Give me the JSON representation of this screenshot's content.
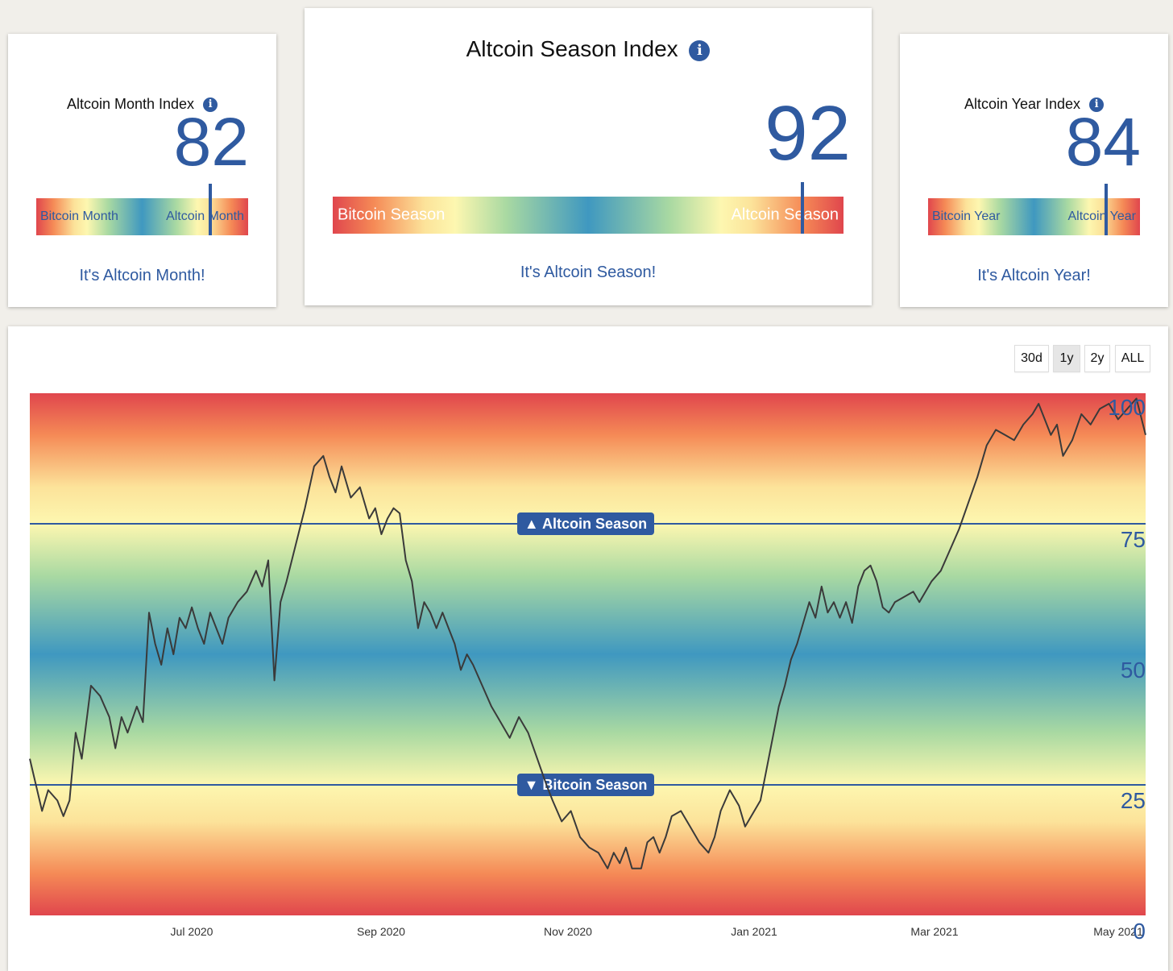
{
  "month_card": {
    "title": "Altcoin Month Index",
    "value": "82",
    "bar_left": "Bitcoin Month",
    "bar_right": "Altcoin Month",
    "marker_percent": 82,
    "message": "It's Altcoin Month!"
  },
  "season_card": {
    "title": "Altcoin Season Index",
    "value": "92",
    "bar_left": "Bitcoin Season",
    "bar_right": "Altcoin Season",
    "marker_percent": 92,
    "message": "It's Altcoin Season!"
  },
  "year_card": {
    "title": "Altcoin Year Index",
    "value": "84",
    "bar_left": "Bitcoin Year",
    "bar_right": "Altcoin Year",
    "marker_percent": 84,
    "message": "It's Altcoin Year!"
  },
  "info_glyph": "i",
  "range_buttons": [
    "30d",
    "1y",
    "2y",
    "ALL"
  ],
  "active_range": "1y",
  "colors": {
    "accent": "#2f5aa0",
    "red": "#e0464d",
    "orange": "#f58a56",
    "yellow": "#fdf7b0",
    "green": "#a9d9a2",
    "blue": "#3f98c0",
    "line": "#3a3a3a"
  },
  "chart_data": {
    "type": "line",
    "title": "Altcoin Season Index",
    "x_labels": [
      "Jul 2020",
      "Sep 2020",
      "Nov 2020",
      "Jan 2021",
      "Mar 2021",
      "May 2021"
    ],
    "y_ticks": [
      "0",
      "25",
      "50",
      "75",
      "100"
    ],
    "ylim": [
      0,
      100
    ],
    "thresholds": [
      {
        "label": "▲ Altcoin Season",
        "value": 75
      },
      {
        "label": "▼ Bitcoin Season",
        "value": 25
      }
    ],
    "x_range": [
      "2020-05-10",
      "2021-05-10"
    ],
    "series": [
      {
        "name": "Altcoin Season Index",
        "points": [
          [
            "2020-05-10",
            30
          ],
          [
            "2020-05-12",
            25
          ],
          [
            "2020-05-14",
            20
          ],
          [
            "2020-05-16",
            24
          ],
          [
            "2020-05-19",
            22
          ],
          [
            "2020-05-21",
            19
          ],
          [
            "2020-05-23",
            22
          ],
          [
            "2020-05-25",
            35
          ],
          [
            "2020-05-27",
            30
          ],
          [
            "2020-05-30",
            44
          ],
          [
            "2020-06-02",
            42
          ],
          [
            "2020-06-05",
            38
          ],
          [
            "2020-06-07",
            32
          ],
          [
            "2020-06-09",
            38
          ],
          [
            "2020-06-11",
            35
          ],
          [
            "2020-06-14",
            40
          ],
          [
            "2020-06-16",
            37
          ],
          [
            "2020-06-18",
            58
          ],
          [
            "2020-06-20",
            52
          ],
          [
            "2020-06-22",
            48
          ],
          [
            "2020-06-24",
            55
          ],
          [
            "2020-06-26",
            50
          ],
          [
            "2020-06-28",
            57
          ],
          [
            "2020-06-30",
            55
          ],
          [
            "2020-07-02",
            59
          ],
          [
            "2020-07-04",
            55
          ],
          [
            "2020-07-06",
            52
          ],
          [
            "2020-07-08",
            58
          ],
          [
            "2020-07-10",
            55
          ],
          [
            "2020-07-12",
            52
          ],
          [
            "2020-07-14",
            57
          ],
          [
            "2020-07-17",
            60
          ],
          [
            "2020-07-20",
            62
          ],
          [
            "2020-07-23",
            66
          ],
          [
            "2020-07-25",
            63
          ],
          [
            "2020-07-27",
            68
          ],
          [
            "2020-07-29",
            45
          ],
          [
            "2020-07-31",
            60
          ],
          [
            "2020-08-02",
            64
          ],
          [
            "2020-08-05",
            71
          ],
          [
            "2020-08-08",
            78
          ],
          [
            "2020-08-11",
            86
          ],
          [
            "2020-08-14",
            88
          ],
          [
            "2020-08-16",
            84
          ],
          [
            "2020-08-18",
            81
          ],
          [
            "2020-08-20",
            86
          ],
          [
            "2020-08-23",
            80
          ],
          [
            "2020-08-26",
            82
          ],
          [
            "2020-08-29",
            76
          ],
          [
            "2020-08-31",
            78
          ],
          [
            "2020-09-02",
            73
          ],
          [
            "2020-09-04",
            76
          ],
          [
            "2020-09-06",
            78
          ],
          [
            "2020-09-08",
            77
          ],
          [
            "2020-09-10",
            68
          ],
          [
            "2020-09-12",
            64
          ],
          [
            "2020-09-14",
            55
          ],
          [
            "2020-09-16",
            60
          ],
          [
            "2020-09-18",
            58
          ],
          [
            "2020-09-20",
            55
          ],
          [
            "2020-09-22",
            58
          ],
          [
            "2020-09-24",
            55
          ],
          [
            "2020-09-26",
            52
          ],
          [
            "2020-09-28",
            47
          ],
          [
            "2020-09-30",
            50
          ],
          [
            "2020-10-02",
            48
          ],
          [
            "2020-10-05",
            44
          ],
          [
            "2020-10-08",
            40
          ],
          [
            "2020-10-11",
            37
          ],
          [
            "2020-10-14",
            34
          ],
          [
            "2020-10-17",
            38
          ],
          [
            "2020-10-20",
            35
          ],
          [
            "2020-10-23",
            30
          ],
          [
            "2020-10-26",
            25
          ],
          [
            "2020-10-28",
            22
          ],
          [
            "2020-10-31",
            18
          ],
          [
            "2020-11-03",
            20
          ],
          [
            "2020-11-06",
            15
          ],
          [
            "2020-11-09",
            13
          ],
          [
            "2020-11-12",
            12
          ],
          [
            "2020-11-15",
            9
          ],
          [
            "2020-11-17",
            12
          ],
          [
            "2020-11-19",
            10
          ],
          [
            "2020-11-21",
            13
          ],
          [
            "2020-11-23",
            9
          ],
          [
            "2020-11-26",
            9
          ],
          [
            "2020-11-28",
            14
          ],
          [
            "2020-11-30",
            15
          ],
          [
            "2020-12-02",
            12
          ],
          [
            "2020-12-04",
            15
          ],
          [
            "2020-12-06",
            19
          ],
          [
            "2020-12-09",
            20
          ],
          [
            "2020-12-12",
            17
          ],
          [
            "2020-12-15",
            14
          ],
          [
            "2020-12-18",
            12
          ],
          [
            "2020-12-20",
            15
          ],
          [
            "2020-12-22",
            20
          ],
          [
            "2020-12-25",
            24
          ],
          [
            "2020-12-28",
            21
          ],
          [
            "2020-12-30",
            17
          ],
          [
            "2021-01-02",
            20
          ],
          [
            "2021-01-04",
            22
          ],
          [
            "2021-01-06",
            28
          ],
          [
            "2021-01-08",
            34
          ],
          [
            "2021-01-10",
            40
          ],
          [
            "2021-01-12",
            44
          ],
          [
            "2021-01-14",
            49
          ],
          [
            "2021-01-16",
            52
          ],
          [
            "2021-01-18",
            56
          ],
          [
            "2021-01-20",
            60
          ],
          [
            "2021-01-22",
            57
          ],
          [
            "2021-01-24",
            63
          ],
          [
            "2021-01-26",
            58
          ],
          [
            "2021-01-28",
            60
          ],
          [
            "2021-01-30",
            57
          ],
          [
            "2021-02-01",
            60
          ],
          [
            "2021-02-03",
            56
          ],
          [
            "2021-02-05",
            63
          ],
          [
            "2021-02-07",
            66
          ],
          [
            "2021-02-09",
            67
          ],
          [
            "2021-02-11",
            64
          ],
          [
            "2021-02-13",
            59
          ],
          [
            "2021-02-15",
            58
          ],
          [
            "2021-02-17",
            60
          ],
          [
            "2021-02-20",
            61
          ],
          [
            "2021-02-23",
            62
          ],
          [
            "2021-02-25",
            60
          ],
          [
            "2021-02-27",
            62
          ],
          [
            "2021-03-01",
            64
          ],
          [
            "2021-03-04",
            66
          ],
          [
            "2021-03-07",
            70
          ],
          [
            "2021-03-10",
            74
          ],
          [
            "2021-03-13",
            79
          ],
          [
            "2021-03-16",
            84
          ],
          [
            "2021-03-19",
            90
          ],
          [
            "2021-03-22",
            93
          ],
          [
            "2021-03-25",
            92
          ],
          [
            "2021-03-28",
            91
          ],
          [
            "2021-03-31",
            94
          ],
          [
            "2021-04-03",
            96
          ],
          [
            "2021-04-05",
            98
          ],
          [
            "2021-04-07",
            95
          ],
          [
            "2021-04-09",
            92
          ],
          [
            "2021-04-11",
            94
          ],
          [
            "2021-04-13",
            88
          ],
          [
            "2021-04-16",
            91
          ],
          [
            "2021-04-19",
            96
          ],
          [
            "2021-04-22",
            94
          ],
          [
            "2021-04-25",
            97
          ],
          [
            "2021-04-28",
            98
          ],
          [
            "2021-05-01",
            95
          ],
          [
            "2021-05-04",
            97
          ],
          [
            "2021-05-07",
            99
          ],
          [
            "2021-05-10",
            92
          ]
        ]
      }
    ]
  }
}
